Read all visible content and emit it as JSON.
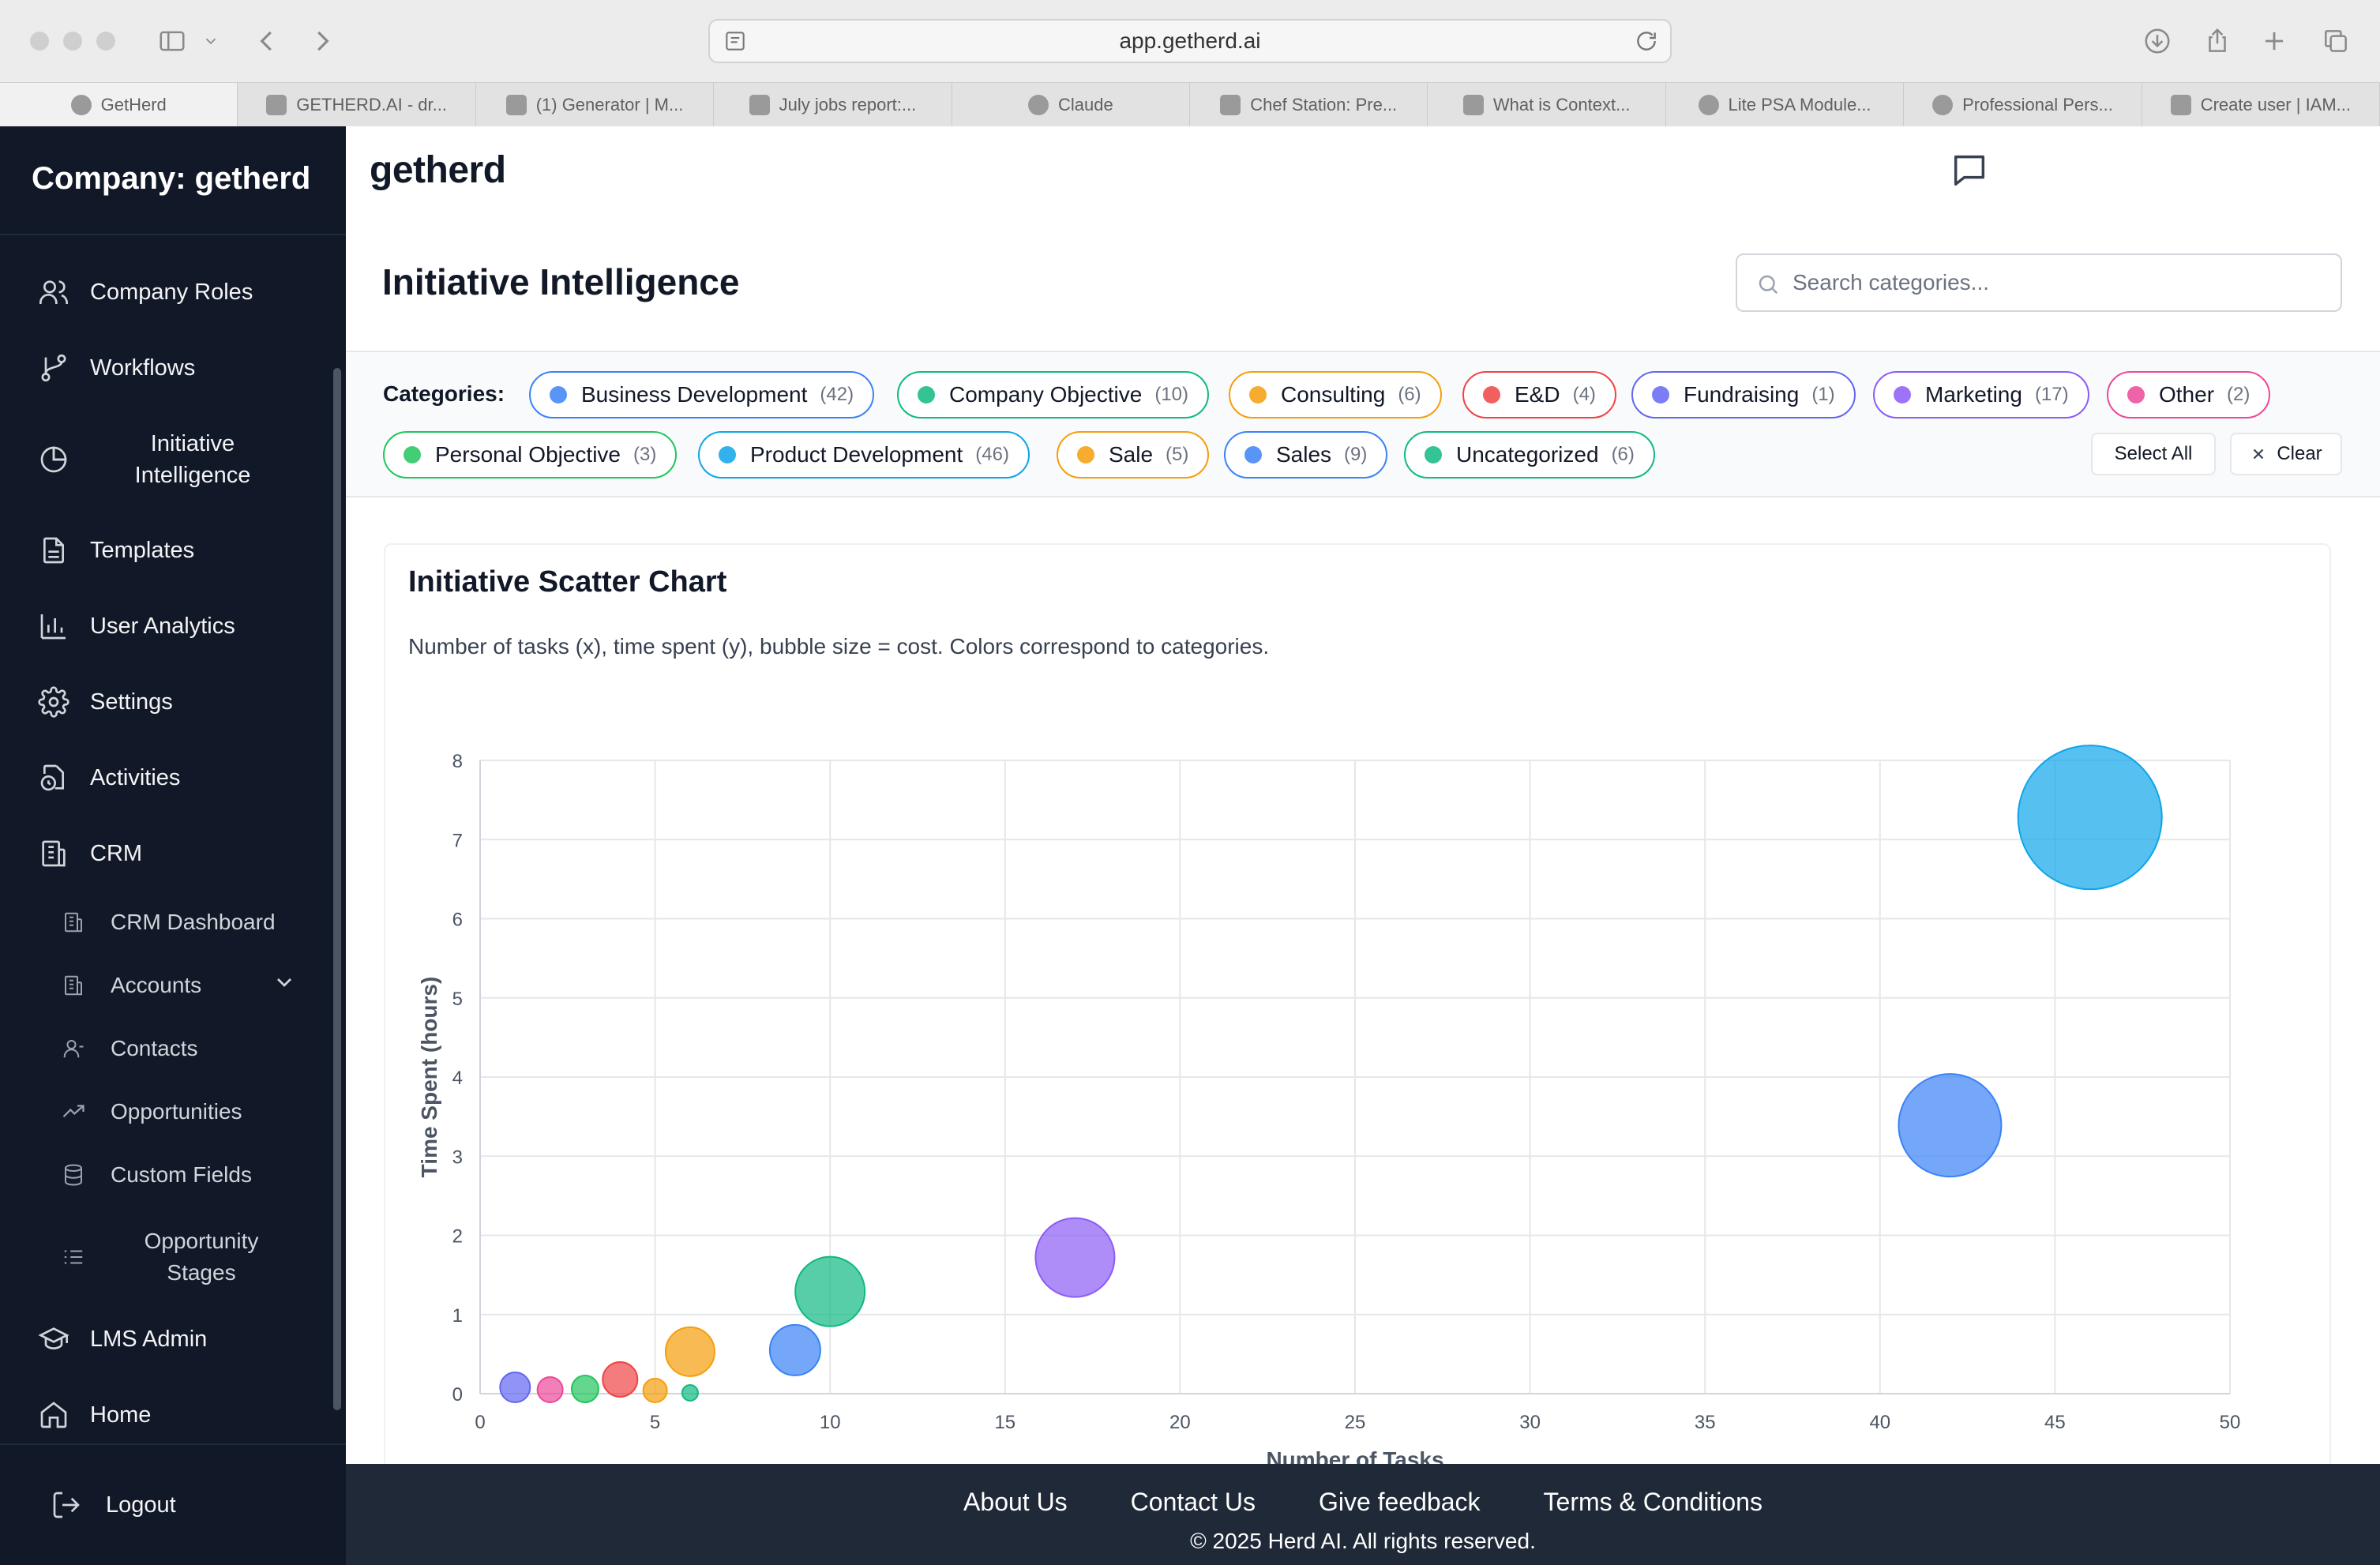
{
  "browser": {
    "url": "app.getherd.ai",
    "tabs": [
      {
        "label": "GetHerd",
        "icon": "getherd-favicon-icon"
      },
      {
        "label": "GETHERD.AI - dr...",
        "icon": "sitemap-favicon-icon"
      },
      {
        "label": "(1) Generator | M...",
        "icon": "medium-favicon-icon"
      },
      {
        "label": "July jobs report:...",
        "icon": "cnn-favicon-icon"
      },
      {
        "label": "Claude",
        "icon": "claude-favicon-icon"
      },
      {
        "label": "Chef Station: Pre...",
        "icon": "app-favicon-icon"
      },
      {
        "label": "What is Context...",
        "icon": "openai-favicon-icon"
      },
      {
        "label": "Lite PSA Module...",
        "icon": "github-favicon-icon"
      },
      {
        "label": "Professional Pers...",
        "icon": "claude-favicon-icon"
      },
      {
        "label": "Create user | IAM...",
        "icon": "aws-favicon-icon"
      }
    ]
  },
  "sidebar": {
    "company": "Company: getherd",
    "items": [
      {
        "label": "Company Roles",
        "icon": "users-icon"
      },
      {
        "label": "Workflows",
        "icon": "workflow-icon"
      },
      {
        "label": "Initiative Intelligence",
        "icon": "pie-chart-icon"
      },
      {
        "label": "Templates",
        "icon": "document-icon"
      },
      {
        "label": "User Analytics",
        "icon": "bar-chart-icon"
      },
      {
        "label": "Settings",
        "icon": "gear-icon"
      },
      {
        "label": "Activities",
        "icon": "clock-file-icon"
      },
      {
        "label": "CRM",
        "icon": "building-icon"
      },
      {
        "label": "LMS Admin",
        "icon": "graduation-cap-icon"
      },
      {
        "label": "Home",
        "icon": "home-icon"
      }
    ],
    "crm_sub": [
      {
        "label": "CRM Dashboard",
        "icon": "building-icon"
      },
      {
        "label": "Accounts",
        "icon": "building-icon"
      },
      {
        "label": "Contacts",
        "icon": "user-icon"
      },
      {
        "label": "Opportunities",
        "icon": "trend-up-icon"
      },
      {
        "label": "Custom Fields",
        "icon": "database-icon"
      },
      {
        "label": "Opportunity Stages",
        "icon": "list-icon"
      }
    ],
    "logout": "Logout"
  },
  "header": {
    "brand": "getherd"
  },
  "page": {
    "title": "Initiative Intelligence",
    "search_placeholder": "Search categories..."
  },
  "categories": {
    "label": "Categories:",
    "items": [
      {
        "name": "Business Development",
        "count": "(42)",
        "color": "#3b82f6"
      },
      {
        "name": "Company Objective",
        "count": "(10)",
        "color": "#10b981"
      },
      {
        "name": "Consulting",
        "count": "(6)",
        "color": "#f59e0b"
      },
      {
        "name": "E&D",
        "count": "(4)",
        "color": "#ef4444"
      },
      {
        "name": "Fundraising",
        "count": "(1)",
        "color": "#6366f1"
      },
      {
        "name": "Marketing",
        "count": "(17)",
        "color": "#8b5cf6"
      },
      {
        "name": "Other",
        "count": "(2)",
        "color": "#ec4899"
      },
      {
        "name": "Personal Objective",
        "count": "(3)",
        "color": "#22c55e"
      },
      {
        "name": "Product Development",
        "count": "(46)",
        "color": "#0ea5e9"
      },
      {
        "name": "Sale",
        "count": "(5)",
        "color": "#f59e0b"
      },
      {
        "name": "Sales",
        "count": "(9)",
        "color": "#3b82f6"
      },
      {
        "name": "Uncategorized",
        "count": "(6)",
        "color": "#10b981"
      }
    ],
    "select_all": "Select All",
    "clear": "Clear"
  },
  "chart_card": {
    "title": "Initiative Scatter Chart",
    "description": "Number of tasks (x), time spent (y), bubble size = cost. Colors correspond to categories."
  },
  "chart_data": {
    "type": "scatter",
    "xlabel": "Number of Tasks",
    "ylabel": "Time Spent (hours)",
    "xlim": [
      0,
      50
    ],
    "ylim": [
      0,
      8
    ],
    "xticks": [
      0,
      5,
      10,
      15,
      20,
      25,
      30,
      35,
      40,
      45,
      50
    ],
    "yticks": [
      0,
      1,
      2,
      3,
      4,
      5,
      6,
      7,
      8
    ],
    "grid": true,
    "points": [
      {
        "category": "Fundraising",
        "x": 1,
        "y": 0.08,
        "size": 19,
        "color": "#6366f1"
      },
      {
        "category": "Other",
        "x": 2,
        "y": 0.05,
        "size": 16,
        "color": "#ec4899"
      },
      {
        "category": "Personal Objective",
        "x": 3,
        "y": 0.06,
        "size": 17,
        "color": "#22c55e"
      },
      {
        "category": "E&D",
        "x": 4,
        "y": 0.18,
        "size": 22,
        "color": "#ef4444"
      },
      {
        "category": "Sale",
        "x": 5,
        "y": 0.04,
        "size": 15,
        "color": "#f59e0b"
      },
      {
        "category": "Uncategorized",
        "x": 6,
        "y": 0.01,
        "size": 10,
        "color": "#10b981"
      },
      {
        "category": "Consulting",
        "x": 6,
        "y": 0.53,
        "size": 31,
        "color": "#f59e0b"
      },
      {
        "category": "Sales",
        "x": 9,
        "y": 0.55,
        "size": 32,
        "color": "#3b82f6"
      },
      {
        "category": "Company Objective",
        "x": 10,
        "y": 1.29,
        "size": 44,
        "color": "#10b981"
      },
      {
        "category": "Marketing",
        "x": 17,
        "y": 1.72,
        "size": 50,
        "color": "#8b5cf6"
      },
      {
        "category": "Business Development",
        "x": 42,
        "y": 3.39,
        "size": 65,
        "color": "#3b82f6"
      },
      {
        "category": "Product Development",
        "x": 46,
        "y": 7.28,
        "size": 91,
        "color": "#0ea5e9"
      }
    ]
  },
  "footer": {
    "links": [
      "About Us",
      "Contact Us",
      "Give feedback",
      "Terms & Conditions"
    ],
    "copyright": "© 2025 Herd AI. All rights reserved."
  }
}
